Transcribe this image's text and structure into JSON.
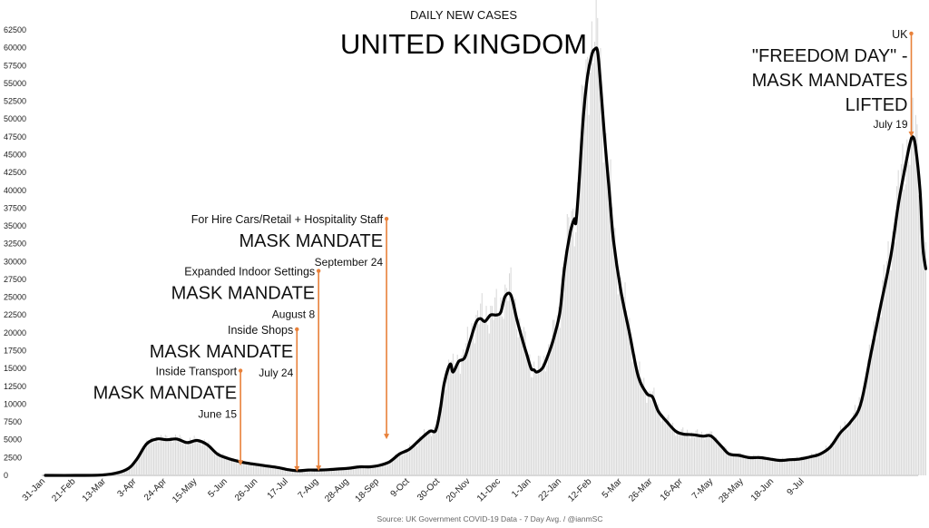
{
  "chart_data": {
    "type": "line",
    "subtitle": "DAILY NEW CASES",
    "title": "UNITED KINGDOM",
    "source": "Source: UK Government COVID-19 Data - 7 Day Avg. / @ianmSC",
    "ylim": [
      0,
      62500
    ],
    "y_ticks": [
      0,
      2500,
      5000,
      7500,
      10000,
      12500,
      15000,
      17500,
      20000,
      22500,
      25000,
      27500,
      30000,
      32500,
      35000,
      37500,
      40000,
      42500,
      45000,
      47500,
      50000,
      52500,
      55000,
      57500,
      60000,
      62500
    ],
    "x_ticks": [
      "31-Jan",
      "21-Feb",
      "13-Mar",
      "3-Apr",
      "24-Apr",
      "15-May",
      "5-Jun",
      "26-Jun",
      "17-Jul",
      "7-Aug",
      "28-Aug",
      "18-Sep",
      "9-Oct",
      "30-Oct",
      "20-Nov",
      "11-Dec",
      "1-Jan",
      "22-Jan",
      "12-Feb",
      "5-Mar",
      "26-Mar",
      "16-Apr",
      "7-May",
      "28-May",
      "18-Jun",
      "9-Jul"
    ],
    "grid": false,
    "series": [
      {
        "color": "#000000",
        "points": [
          [
            0,
            0
          ],
          [
            21,
            0
          ],
          [
            42,
            100
          ],
          [
            56,
            800
          ],
          [
            63,
            2200
          ],
          [
            70,
            4400
          ],
          [
            77,
            5100
          ],
          [
            84,
            5000
          ],
          [
            91,
            5100
          ],
          [
            98,
            4600
          ],
          [
            105,
            4900
          ],
          [
            112,
            4300
          ],
          [
            119,
            3000
          ],
          [
            126,
            2400
          ],
          [
            133,
            2000
          ],
          [
            140,
            1700
          ],
          [
            147,
            1500
          ],
          [
            154,
            1300
          ],
          [
            161,
            1100
          ],
          [
            168,
            800
          ],
          [
            175,
            650
          ],
          [
            182,
            750
          ],
          [
            189,
            750
          ],
          [
            196,
            800
          ],
          [
            203,
            900
          ],
          [
            210,
            1000
          ],
          [
            217,
            1200
          ],
          [
            224,
            1200
          ],
          [
            231,
            1400
          ],
          [
            238,
            1900
          ],
          [
            245,
            3000
          ],
          [
            252,
            3700
          ],
          [
            259,
            5000
          ],
          [
            266,
            6200
          ],
          [
            270,
            6300
          ],
          [
            273,
            9000
          ],
          [
            276,
            13000
          ],
          [
            280,
            15600
          ],
          [
            282,
            14500
          ],
          [
            286,
            16000
          ],
          [
            290,
            16500
          ],
          [
            294,
            19000
          ],
          [
            298,
            21500
          ],
          [
            301,
            22000
          ],
          [
            304,
            21600
          ],
          [
            308,
            22500
          ],
          [
            312,
            22500
          ],
          [
            315,
            22900
          ],
          [
            318,
            25100
          ],
          [
            322,
            25300
          ],
          [
            326,
            22000
          ],
          [
            330,
            19000
          ],
          [
            333,
            17000
          ],
          [
            336,
            15000
          ],
          [
            338,
            14800
          ],
          [
            340,
            14500
          ],
          [
            344,
            15100
          ],
          [
            348,
            17000
          ],
          [
            352,
            19500
          ],
          [
            356,
            23000
          ],
          [
            359,
            29000
          ],
          [
            363,
            34000
          ],
          [
            366,
            36000
          ],
          [
            367,
            35500
          ],
          [
            369,
            40500
          ],
          [
            372,
            50000
          ],
          [
            375,
            56000
          ],
          [
            378,
            59000
          ],
          [
            380,
            59800
          ],
          [
            382,
            59500
          ],
          [
            384,
            55000
          ],
          [
            387,
            47000
          ],
          [
            390,
            40000
          ],
          [
            393,
            33000
          ],
          [
            398,
            26000
          ],
          [
            404,
            20000
          ],
          [
            410,
            14000
          ],
          [
            416,
            11500
          ],
          [
            420,
            11000
          ],
          [
            424,
            9000
          ],
          [
            430,
            7500
          ],
          [
            436,
            6200
          ],
          [
            441,
            5800
          ],
          [
            448,
            5700
          ],
          [
            455,
            5500
          ],
          [
            459,
            5600
          ],
          [
            462,
            5300
          ],
          [
            468,
            4000
          ],
          [
            473,
            3000
          ],
          [
            480,
            2800
          ],
          [
            487,
            2500
          ],
          [
            494,
            2500
          ],
          [
            501,
            2300
          ],
          [
            508,
            2100
          ],
          [
            515,
            2200
          ],
          [
            522,
            2300
          ],
          [
            529,
            2600
          ],
          [
            536,
            3000
          ],
          [
            543,
            4000
          ],
          [
            550,
            6000
          ],
          [
            557,
            7500
          ],
          [
            564,
            10000
          ],
          [
            571,
            17000
          ],
          [
            578,
            24000
          ],
          [
            585,
            31000
          ],
          [
            590,
            38000
          ],
          [
            595,
            43500
          ],
          [
            598,
            46500
          ],
          [
            600,
            47500
          ],
          [
            602,
            46000
          ],
          [
            605,
            40000
          ],
          [
            607,
            32000
          ],
          [
            609,
            29000
          ]
        ]
      }
    ],
    "annotations": [
      {
        "lines": [
          "Inside Transport"
        ],
        "big": "MASK MANDATE",
        "date": "June 15",
        "x": 135,
        "y_top": 14700,
        "y_end": 1500
      },
      {
        "lines": [
          "Inside Shops"
        ],
        "big": "MASK MANDATE",
        "date": "July 24",
        "x": 174,
        "y_top": 20500,
        "y_end": 650
      },
      {
        "lines": [
          "Expanded Indoor Settings"
        ],
        "big": "MASK MANDATE",
        "date": "August 8",
        "x": 189,
        "y_top": 28700,
        "y_end": 750
      },
      {
        "lines": [
          "For Hire Cars/Retail + Hospitality Staff"
        ],
        "big": "MASK MANDATE",
        "date": "September 24",
        "x": 236,
        "y_top": 36000,
        "y_end": 5200
      },
      {
        "small": "UK",
        "big_lines": [
          "\"FREEDOM DAY\" -",
          "MASK MANDATES",
          "LIFTED"
        ],
        "date": "July 19",
        "x": 599,
        "y_top": 62000,
        "y_end": 47600
      }
    ]
  }
}
